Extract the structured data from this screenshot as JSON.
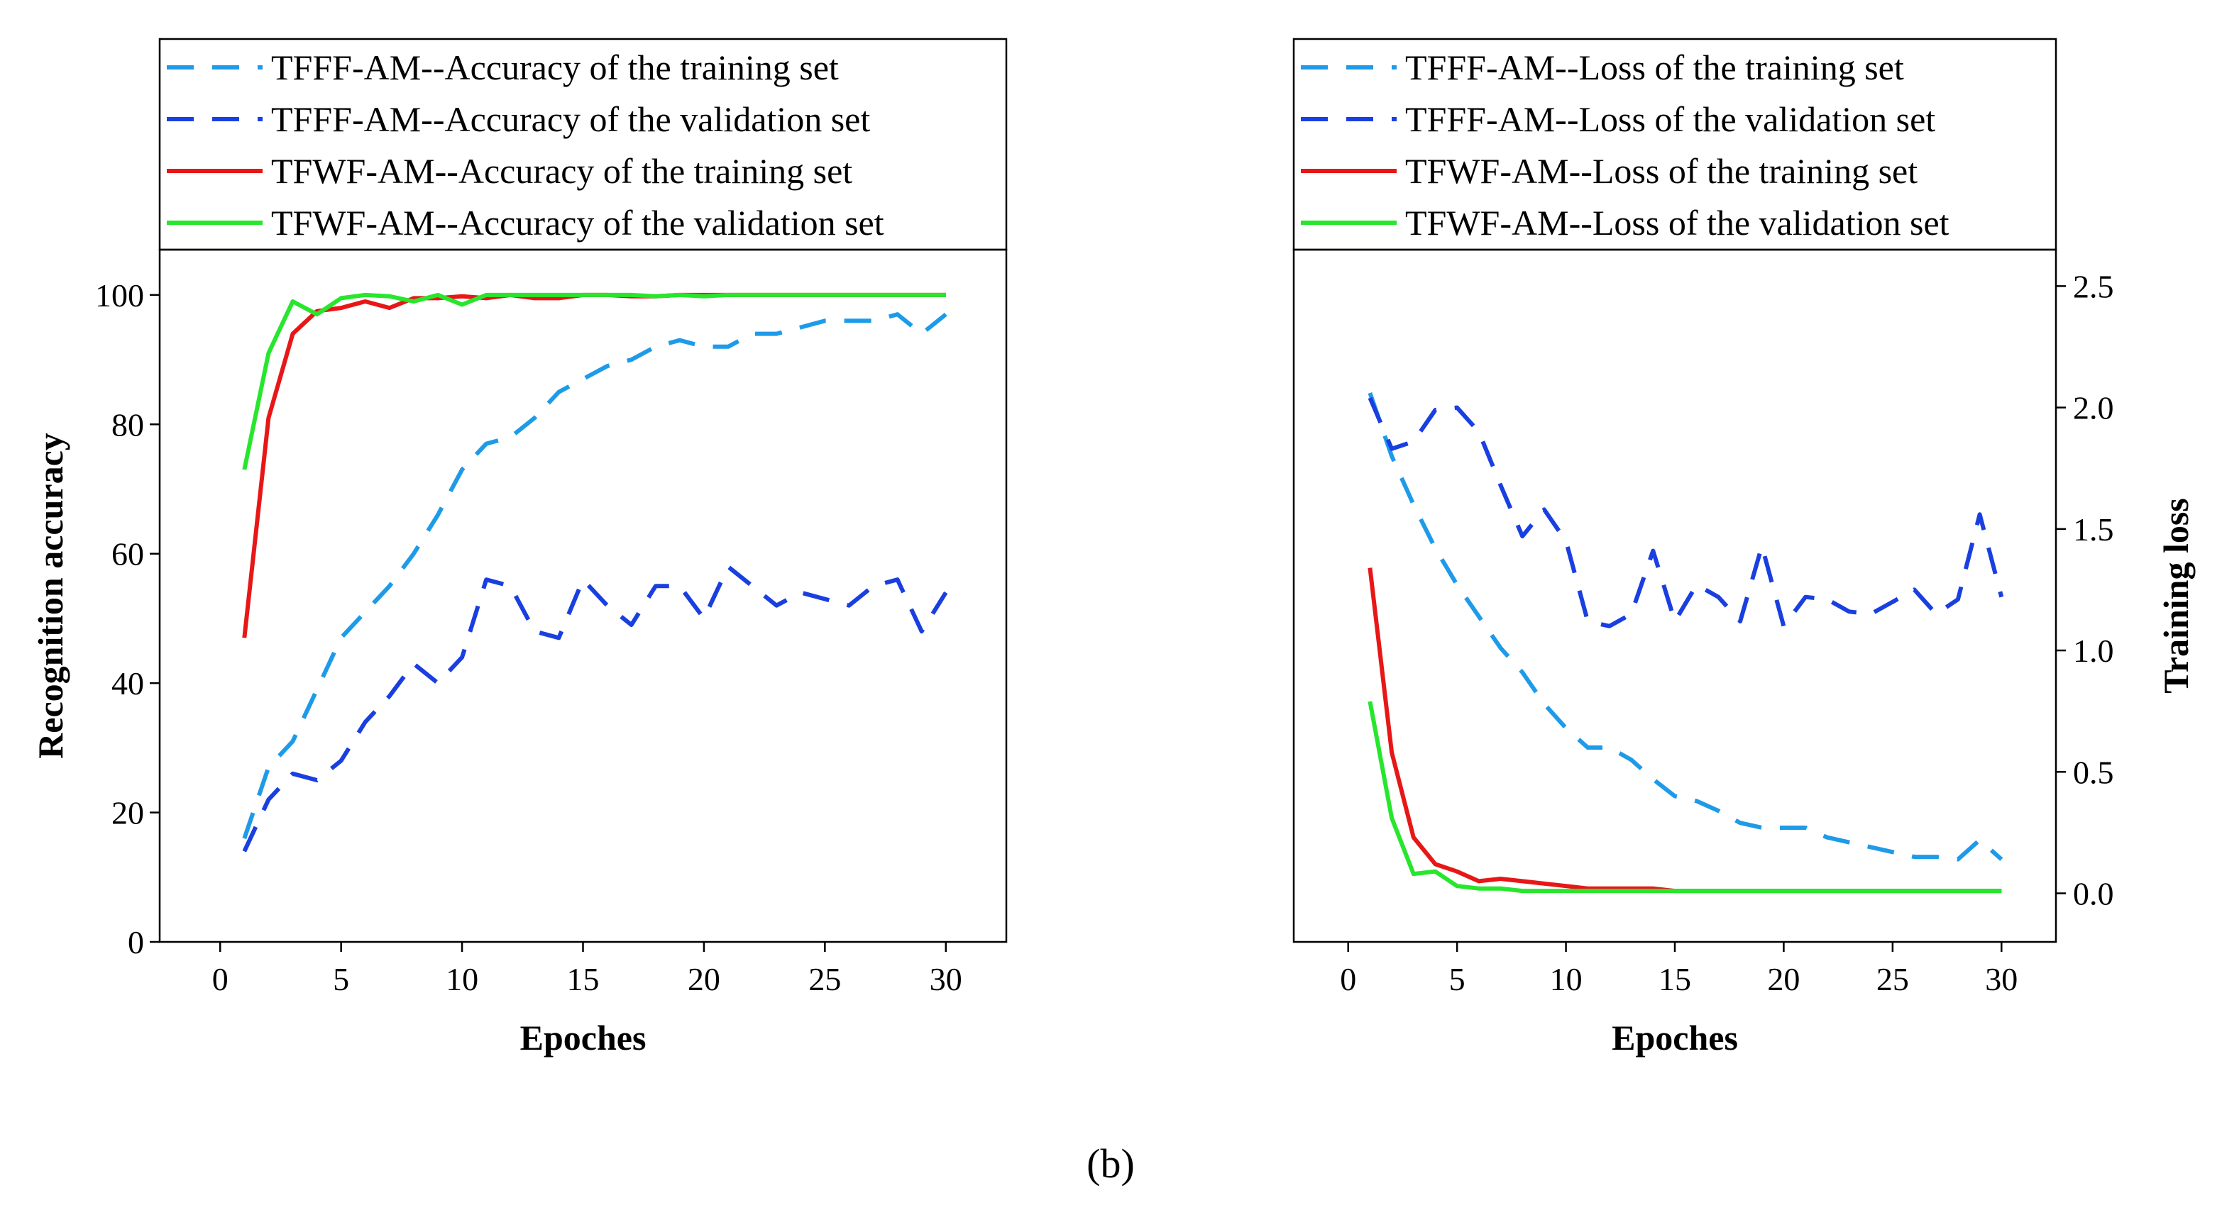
{
  "caption": "(b)",
  "series_styles": [
    {
      "name_key": "TFFF-AM train",
      "color": "#1e9be8",
      "dash": "dashed"
    },
    {
      "name_key": "TFFF-AM valid",
      "color": "#1a3fe0",
      "dash": "dashed"
    },
    {
      "name_key": "TFWF-AM train",
      "color": "#e81717",
      "dash": "solid"
    },
    {
      "name_key": "TFWF-AM valid",
      "color": "#27e62d",
      "dash": "solid"
    }
  ],
  "chart_data": [
    {
      "type": "line",
      "id": "accuracy",
      "xlabel": "Epoches",
      "ylabel": "Recognition accuracy",
      "xlim": [
        -2.5,
        32.5
      ],
      "ylim": [
        0,
        107
      ],
      "xticks": [
        0,
        5,
        10,
        15,
        20,
        25,
        30
      ],
      "yticks": [
        0,
        20,
        40,
        60,
        80,
        100
      ],
      "x": [
        1,
        2,
        3,
        4,
        5,
        6,
        7,
        8,
        9,
        10,
        11,
        12,
        13,
        14,
        15,
        16,
        17,
        18,
        19,
        20,
        21,
        22,
        23,
        24,
        25,
        26,
        27,
        28,
        29,
        30
      ],
      "series": [
        {
          "name": "TFFF-AM--Accuracy of the training set",
          "values": [
            16,
            27,
            31,
            39,
            47,
            51,
            55,
            60,
            66,
            73,
            77,
            78,
            81,
            85,
            87,
            89,
            90,
            92,
            93,
            92,
            92,
            94,
            94,
            95,
            96,
            96,
            96,
            97,
            94,
            97
          ]
        },
        {
          "name": "TFFF-AM--Accuracy of the validation set",
          "values": [
            14,
            22,
            26,
            25,
            28,
            34,
            38,
            43,
            40,
            44,
            56,
            55,
            48,
            47,
            56,
            52,
            49,
            55,
            55,
            50,
            58,
            55,
            52,
            54,
            53,
            52,
            55,
            56,
            48,
            54
          ]
        },
        {
          "name": "TFWF-AM--Accuracy of the training set",
          "values": [
            47,
            81,
            94,
            97.5,
            98,
            99,
            98,
            99.5,
            99.5,
            99.8,
            99.5,
            100,
            99.5,
            99.5,
            100,
            100,
            99.8,
            99.8,
            100,
            100,
            100,
            100,
            100,
            100,
            100,
            100,
            100,
            100,
            100,
            100
          ]
        },
        {
          "name": "TFWF-AM--Accuracy of the validation set",
          "values": [
            73,
            91,
            99,
            97,
            99.5,
            100,
            99.8,
            99,
            100,
            98.5,
            100,
            100,
            100,
            100,
            100,
            100,
            100,
            99.8,
            100,
            99.8,
            100,
            100,
            100,
            100,
            100,
            100,
            100,
            100,
            100,
            100
          ]
        }
      ]
    },
    {
      "type": "line",
      "id": "loss",
      "xlabel": "Epoches",
      "ylabel": "Training loss",
      "xlim": [
        -2.5,
        32.5
      ],
      "ylim": [
        -0.2,
        2.65
      ],
      "xticks": [
        0,
        5,
        10,
        15,
        20,
        25,
        30
      ],
      "yticks": [
        0.0,
        0.5,
        1.0,
        1.5,
        2.0,
        2.5
      ],
      "ytick_labels": [
        "0.0",
        "0.5",
        "1.0",
        "1.5",
        "2.0",
        "2.5"
      ],
      "x": [
        1,
        2,
        3,
        4,
        5,
        6,
        7,
        8,
        9,
        10,
        11,
        12,
        13,
        14,
        15,
        16,
        17,
        18,
        19,
        20,
        21,
        22,
        23,
        24,
        25,
        26,
        27,
        28,
        29,
        30
      ],
      "series": [
        {
          "name": "TFFF-AM--Loss of the training set",
          "values": [
            2.06,
            1.8,
            1.6,
            1.42,
            1.27,
            1.14,
            1.01,
            0.91,
            0.78,
            0.68,
            0.6,
            0.6,
            0.55,
            0.47,
            0.4,
            0.38,
            0.34,
            0.29,
            0.27,
            0.27,
            0.27,
            0.23,
            0.21,
            0.19,
            0.17,
            0.15,
            0.15,
            0.14,
            0.22,
            0.14
          ]
        },
        {
          "name": "TFFF-AM--Loss of the validation set",
          "values": [
            2.04,
            1.83,
            1.86,
            1.99,
            2.0,
            1.9,
            1.68,
            1.47,
            1.58,
            1.45,
            1.12,
            1.1,
            1.15,
            1.41,
            1.12,
            1.27,
            1.22,
            1.12,
            1.43,
            1.1,
            1.22,
            1.21,
            1.16,
            1.15,
            1.2,
            1.25,
            1.15,
            1.21,
            1.56,
            1.22
          ]
        },
        {
          "name": "TFWF-AM--Loss of the training set",
          "values": [
            1.34,
            0.58,
            0.23,
            0.12,
            0.09,
            0.05,
            0.06,
            0.05,
            0.04,
            0.03,
            0.02,
            0.02,
            0.02,
            0.02,
            0.01,
            0.01,
            0.01,
            0.01,
            0.01,
            0.01,
            0.01,
            0.01,
            0.01,
            0.01,
            0.01,
            0.01,
            0.01,
            0.01,
            0.01,
            0.01
          ]
        },
        {
          "name": "TFWF-AM--Loss of the validation set",
          "values": [
            0.79,
            0.31,
            0.08,
            0.09,
            0.03,
            0.02,
            0.02,
            0.01,
            0.01,
            0.01,
            0.01,
            0.01,
            0.01,
            0.01,
            0.01,
            0.01,
            0.01,
            0.01,
            0.01,
            0.01,
            0.01,
            0.01,
            0.01,
            0.01,
            0.01,
            0.01,
            0.01,
            0.01,
            0.01,
            0.01
          ]
        }
      ]
    }
  ]
}
